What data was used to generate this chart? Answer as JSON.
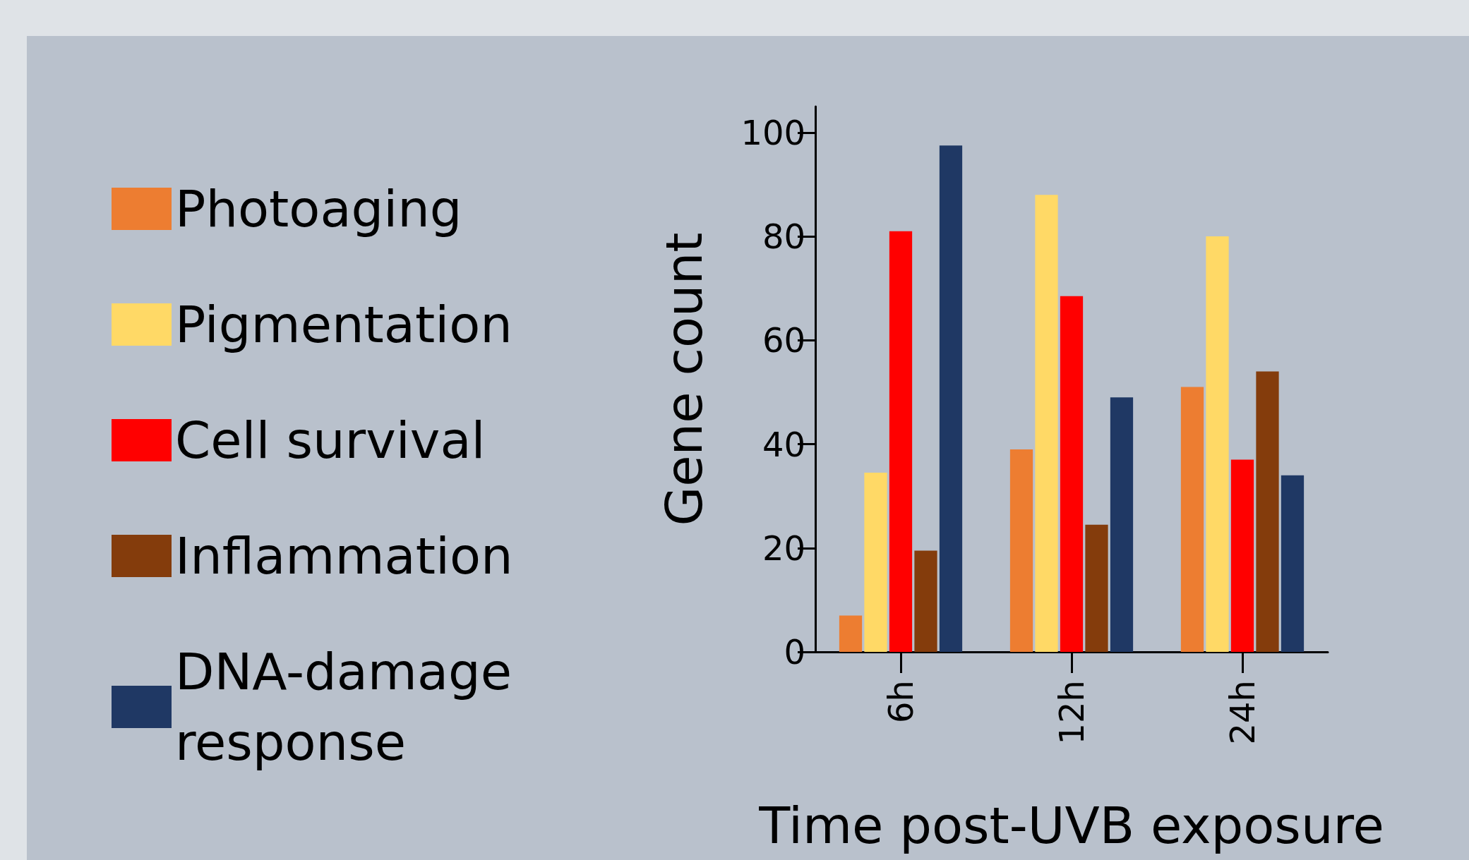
{
  "chart_data": {
    "type": "bar",
    "xlabel": "Time post-UVB exposure",
    "ylabel": "Gene count",
    "categories": [
      "6h",
      "12h",
      "24h"
    ],
    "series": [
      {
        "name": "Photoaging",
        "color": "#ed7d31",
        "values": [
          7,
          39,
          51
        ]
      },
      {
        "name": "Pigmentation",
        "color": "#ffd966",
        "values": [
          34.5,
          88,
          80
        ]
      },
      {
        "name": "Cell survival",
        "color": "#ff0000",
        "values": [
          81,
          68.5,
          37
        ]
      },
      {
        "name": "Inflammation",
        "color": "#843c0c",
        "values": [
          19.5,
          24.5,
          54
        ]
      },
      {
        "name": "DNA-damage response",
        "color": "#1f3864",
        "values": [
          97.5,
          49,
          34
        ]
      }
    ],
    "ylim": [
      0,
      105
    ],
    "yticks": [
      0,
      20,
      40,
      60,
      80,
      100
    ],
    "grid": false,
    "legend": "left"
  }
}
